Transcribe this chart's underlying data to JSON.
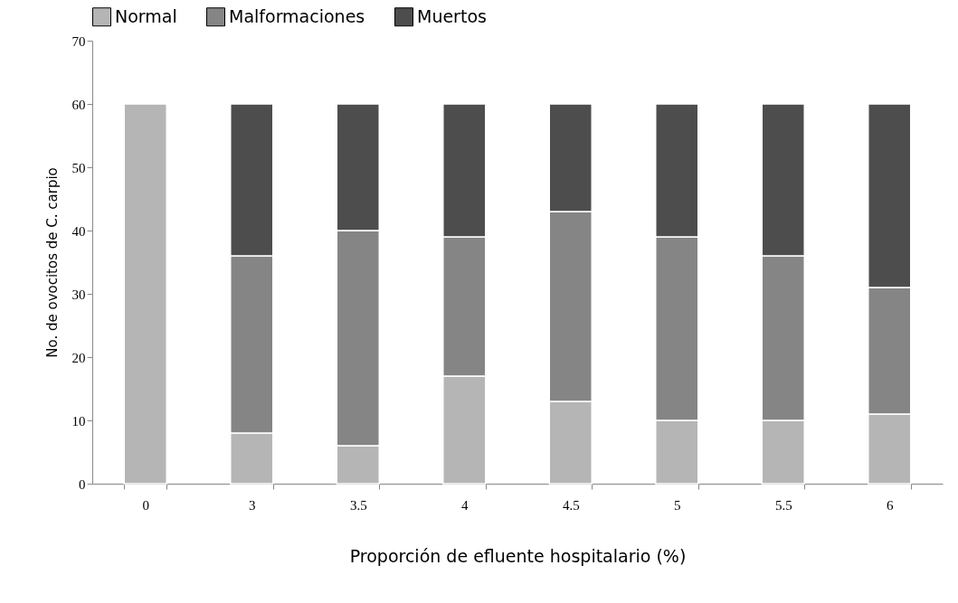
{
  "chart_data": {
    "type": "bar",
    "stacked": true,
    "xlabel": "Proporción de efluente hospitalario (%)",
    "ylabel": "No. de ovocitos de C. carpio",
    "categories": [
      "0",
      "3",
      "3.5",
      "4",
      "4.5",
      "5",
      "5.5",
      "6"
    ],
    "series": [
      {
        "name": "Normal",
        "color": "#b5b5b5",
        "values": [
          60,
          8,
          6,
          17,
          13,
          10,
          10,
          11
        ]
      },
      {
        "name": "Malformaciones",
        "color": "#858585",
        "values": [
          0,
          28,
          34,
          22,
          30,
          29,
          26,
          20
        ]
      },
      {
        "name": "Muertos",
        "color": "#4d4d4d",
        "values": [
          0,
          24,
          20,
          21,
          17,
          21,
          24,
          29
        ]
      }
    ],
    "ylim": [
      0,
      70
    ],
    "yticks": [
      0,
      10,
      20,
      30,
      40,
      50,
      60,
      70
    ],
    "grid": false,
    "legend": "top"
  }
}
